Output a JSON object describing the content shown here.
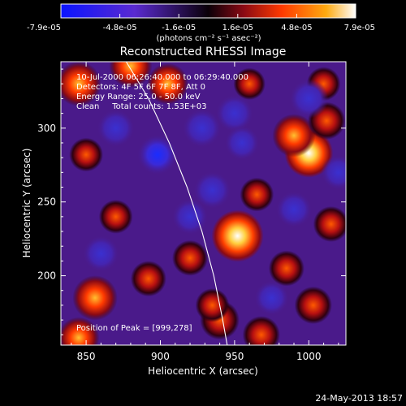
{
  "chart_data": {
    "type": "heatmap",
    "title": "Reconstructed RHESSI Image",
    "xlabel": "Heliocentric X (arcsec)",
    "ylabel": "Heliocentric Y (arcsec)",
    "xlim": [
      833,
      1025
    ],
    "ylim": [
      153,
      345
    ],
    "x_ticks": [
      850,
      900,
      950,
      1000
    ],
    "y_ticks": [
      200,
      250,
      300
    ],
    "colorbar": {
      "range": [
        -7.9e-05,
        7.9e-05
      ],
      "tick_labels": [
        "-7.9e-05",
        "-4.8e-05",
        "-1.6e-05",
        "1.6e-05",
        "4.8e-05",
        "7.9e-05"
      ],
      "unit_label": "(photons cm⁻² s⁻¹ asec⁻²)"
    },
    "annotations": [
      "10-Jul-2000 06:26:40.000 to 06:29:40.000",
      "Detectors: 4F 5F 6F 7F 8F, Att 0",
      "Energy Range: 25.0 - 50.0 keV",
      "Clean     Total counts: 1.53E+03"
    ],
    "peak_label": "Position of Peak = [999,278]",
    "peak": [
      999,
      278
    ],
    "sources": [
      {
        "x": 952,
        "y": 227,
        "value": 7.9e-05
      },
      {
        "x": 1000,
        "y": 283,
        "value": 7e-05
      },
      {
        "x": 990,
        "y": 295,
        "value": 5.5e-05
      },
      {
        "x": 856,
        "y": 185,
        "value": 6e-05
      },
      {
        "x": 845,
        "y": 158,
        "value": 5e-05
      },
      {
        "x": 940,
        "y": 170,
        "value": 4.5e-05
      },
      {
        "x": 1012,
        "y": 305,
        "value": 4e-05
      },
      {
        "x": 845,
        "y": 330,
        "value": 6e-05
      },
      {
        "x": 880,
        "y": 342,
        "value": 5.5e-05
      },
      {
        "x": 905,
        "y": 330,
        "value": 5e-05
      },
      {
        "x": 968,
        "y": 160,
        "value": 4e-05
      },
      {
        "x": 1003,
        "y": 180,
        "value": 4e-05
      },
      {
        "x": 892,
        "y": 198,
        "value": 3.5e-05
      },
      {
        "x": 920,
        "y": 212,
        "value": 3.5e-05
      },
      {
        "x": 870,
        "y": 240,
        "value": 3e-05
      },
      {
        "x": 850,
        "y": 282,
        "value": 3e-05
      },
      {
        "x": 1015,
        "y": 235,
        "value": 3.5e-05
      },
      {
        "x": 965,
        "y": 255,
        "value": 3e-05
      },
      {
        "x": 985,
        "y": 205,
        "value": 3.5e-05
      },
      {
        "x": 935,
        "y": 180,
        "value": 3e-05
      },
      {
        "x": 960,
        "y": 330,
        "value": 2.5e-05
      },
      {
        "x": 1010,
        "y": 330,
        "value": 3e-05
      },
      {
        "x": 928,
        "y": 300,
        "value": -3.5e-05
      },
      {
        "x": 898,
        "y": 282,
        "value": -4e-05
      },
      {
        "x": 1000,
        "y": 320,
        "value": -3.5e-05
      },
      {
        "x": 935,
        "y": 258,
        "value": -3e-05
      },
      {
        "x": 870,
        "y": 300,
        "value": -3e-05
      },
      {
        "x": 950,
        "y": 310,
        "value": -3e-05
      },
      {
        "x": 955,
        "y": 290,
        "value": -2e-05
      },
      {
        "x": 990,
        "y": 245,
        "value": -2.5e-05
      },
      {
        "x": 860,
        "y": 215,
        "value": -2.5e-05
      },
      {
        "x": 920,
        "y": 240,
        "value": -2.5e-05
      },
      {
        "x": 975,
        "y": 185,
        "value": -2e-05
      },
      {
        "x": 1020,
        "y": 270,
        "value": -2e-05
      }
    ],
    "limb_curve": [
      [
        877,
        345
      ],
      [
        892,
        320
      ],
      [
        906,
        290
      ],
      [
        918,
        260
      ],
      [
        928,
        230
      ],
      [
        936,
        200
      ],
      [
        942,
        170
      ],
      [
        945,
        153
      ]
    ]
  },
  "footer": {
    "date": "24-May-2013 18:57"
  },
  "colors": {
    "background": "#000000",
    "text": "#ffffff"
  }
}
